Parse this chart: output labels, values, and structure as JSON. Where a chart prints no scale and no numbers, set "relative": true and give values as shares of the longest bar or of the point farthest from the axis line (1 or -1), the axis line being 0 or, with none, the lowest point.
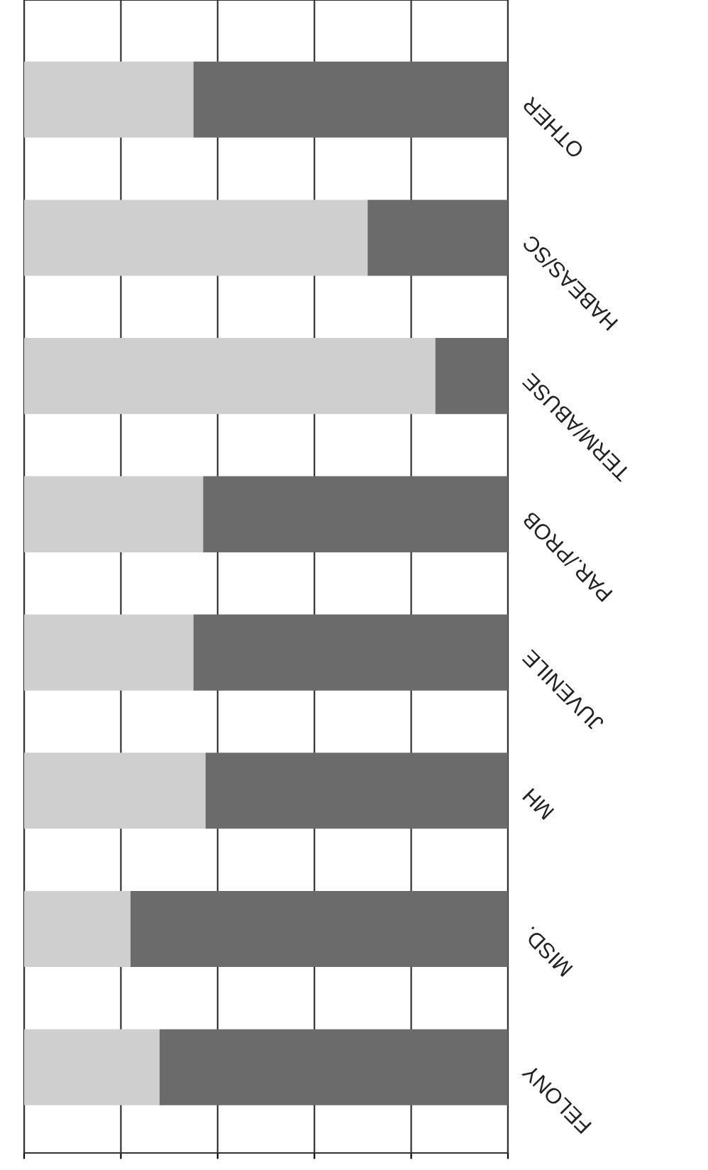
{
  "chart_data": {
    "type": "bar",
    "orientation": "horizontal",
    "stacked": true,
    "relative": true,
    "grid": "x",
    "legend": false,
    "categories": [
      "OTHER",
      "HABEAS/SC",
      "TERM/ABUSE",
      "PAR./PROB",
      "JUVENILE",
      "MH",
      "MISD.",
      "FELONY"
    ],
    "series": [
      {
        "color": "#cfcfcf",
        "values": [
          0.35,
          0.71,
          0.85,
          0.37,
          0.35,
          0.375,
          0.22,
          0.28
        ]
      },
      {
        "color": "#6b6b6b",
        "values": [
          0.65,
          0.29,
          0.15,
          0.63,
          0.65,
          0.625,
          0.78,
          0.72
        ]
      }
    ]
  }
}
